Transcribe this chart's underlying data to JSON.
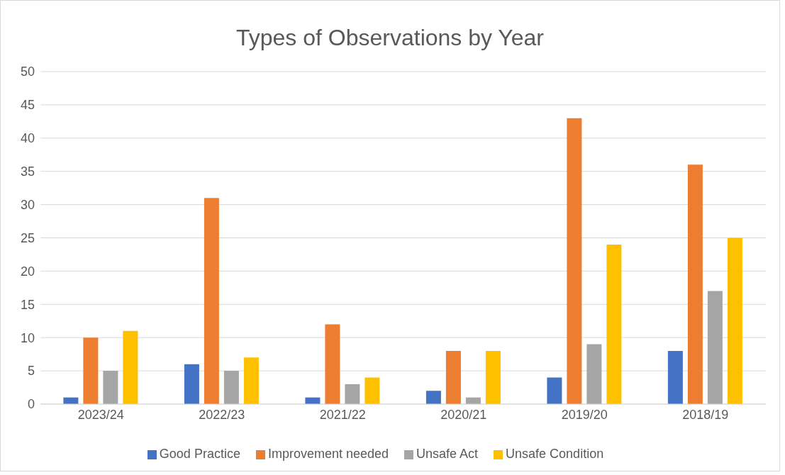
{
  "chart_data": {
    "type": "bar",
    "title": "Types of Observations by Year",
    "categories": [
      "2023/24",
      "2022/23",
      "2021/22",
      "2020/21",
      "2019/20",
      "2018/19"
    ],
    "series": [
      {
        "name": "Good Practice",
        "color": "#4472c4",
        "values": [
          1,
          6,
          1,
          2,
          4,
          8
        ]
      },
      {
        "name": "Improvement needed",
        "color": "#ed7d31",
        "values": [
          10,
          31,
          12,
          8,
          43,
          36
        ]
      },
      {
        "name": "Unsafe Act",
        "color": "#a5a5a5",
        "values": [
          5,
          5,
          3,
          1,
          9,
          17
        ]
      },
      {
        "name": "Unsafe Condition",
        "color": "#ffc000",
        "values": [
          11,
          7,
          4,
          8,
          24,
          25
        ]
      }
    ],
    "ylim": [
      0,
      50
    ],
    "yticks": [
      0,
      5,
      10,
      15,
      20,
      25,
      30,
      35,
      40,
      45,
      50
    ],
    "grid": "y",
    "legend": "bottom"
  }
}
